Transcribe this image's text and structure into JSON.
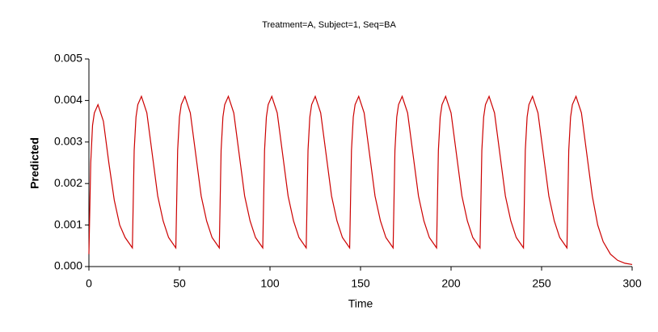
{
  "chart_data": {
    "type": "line",
    "title": "Treatment=A, Subject=1, Seq=BA",
    "x_label": "Time",
    "y_label": "Predicted",
    "x": [
      0,
      1,
      2,
      3,
      5,
      8,
      11,
      14,
      17,
      20,
      24,
      25,
      26,
      27,
      29,
      32,
      35,
      38,
      41,
      44,
      48,
      49,
      50,
      51,
      53,
      56,
      59,
      62,
      65,
      68,
      72,
      73,
      74,
      75,
      77,
      80,
      83,
      86,
      89,
      92,
      96,
      97,
      98,
      99,
      101,
      104,
      107,
      110,
      113,
      116,
      120,
      121,
      122,
      123,
      125,
      128,
      131,
      134,
      137,
      140,
      144,
      145,
      146,
      147,
      149,
      152,
      155,
      158,
      161,
      164,
      168,
      169,
      170,
      171,
      173,
      176,
      179,
      182,
      185,
      188,
      192,
      193,
      194,
      195,
      197,
      200,
      203,
      206,
      209,
      212,
      216,
      217,
      218,
      219,
      221,
      224,
      227,
      230,
      233,
      236,
      240,
      241,
      242,
      243,
      245,
      248,
      251,
      254,
      257,
      260,
      264,
      265,
      266,
      267,
      269,
      272,
      275,
      278,
      281,
      284,
      288,
      292,
      296,
      300
    ],
    "series": [
      {
        "name": "Predicted",
        "color": "#cc0000",
        "values": [
          0.0003,
          0.0025,
          0.0034,
          0.0037,
          0.0039,
          0.0035,
          0.0025,
          0.0016,
          0.001,
          0.0007,
          0.00045,
          0.0028,
          0.0036,
          0.0039,
          0.0041,
          0.0037,
          0.0027,
          0.0017,
          0.0011,
          0.0007,
          0.00045,
          0.0028,
          0.0036,
          0.0039,
          0.0041,
          0.0037,
          0.0027,
          0.0017,
          0.0011,
          0.0007,
          0.00045,
          0.0028,
          0.0036,
          0.0039,
          0.0041,
          0.0037,
          0.0027,
          0.0017,
          0.0011,
          0.0007,
          0.00045,
          0.0028,
          0.0036,
          0.0039,
          0.0041,
          0.0037,
          0.0027,
          0.0017,
          0.0011,
          0.0007,
          0.00045,
          0.0028,
          0.0036,
          0.0039,
          0.0041,
          0.0037,
          0.0027,
          0.0017,
          0.0011,
          0.0007,
          0.00045,
          0.0028,
          0.0036,
          0.0039,
          0.0041,
          0.0037,
          0.0027,
          0.0017,
          0.0011,
          0.0007,
          0.00045,
          0.0028,
          0.0036,
          0.0039,
          0.0041,
          0.0037,
          0.0027,
          0.0017,
          0.0011,
          0.0007,
          0.00045,
          0.0028,
          0.0036,
          0.0039,
          0.0041,
          0.0037,
          0.0027,
          0.0017,
          0.0011,
          0.0007,
          0.00045,
          0.0028,
          0.0036,
          0.0039,
          0.0041,
          0.0037,
          0.0027,
          0.0017,
          0.0011,
          0.0007,
          0.00045,
          0.0028,
          0.0036,
          0.0039,
          0.0041,
          0.0037,
          0.0027,
          0.0017,
          0.0011,
          0.0007,
          0.00045,
          0.0028,
          0.0036,
          0.0039,
          0.0041,
          0.0037,
          0.0027,
          0.0017,
          0.001,
          0.0006,
          0.0003,
          0.00015,
          8e-05,
          5e-05
        ]
      }
    ],
    "xlim": [
      0,
      300
    ],
    "xticks": [
      0,
      50,
      100,
      150,
      200,
      250,
      300
    ],
    "ylim": [
      0,
      0.005
    ],
    "yticks": [
      {
        "value": 0,
        "label": "0.000"
      },
      {
        "value": 0.001,
        "label": "0.001"
      },
      {
        "value": 0.002,
        "label": "0.002"
      },
      {
        "value": 0.003,
        "label": "0.003"
      },
      {
        "value": 0.004,
        "label": "0.004"
      },
      {
        "value": 0.005,
        "label": "0.005"
      }
    ],
    "grid": false
  }
}
